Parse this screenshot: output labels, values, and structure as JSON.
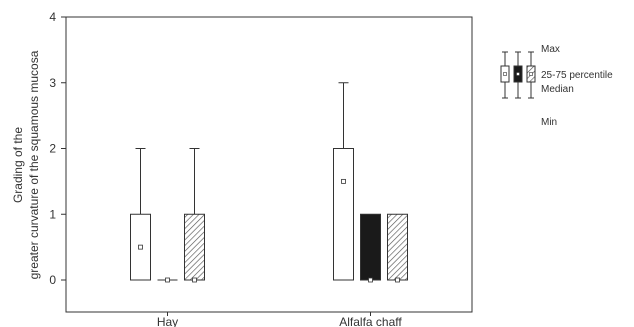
{
  "chart_data": {
    "type": "boxplot",
    "title": "",
    "xlabel": "",
    "ylabel": "Grading of the greater curvature of the squamous mucosa",
    "ylabel_lines": [
      "Grading of the",
      "greater curvature  of the squamous mucosa"
    ],
    "ylim": [
      0,
      4
    ],
    "yticks": [
      "0",
      "1",
      "2",
      "3",
      "4"
    ],
    "categories": [
      "Hay",
      "Alfalfa chaff"
    ],
    "box_styles": [
      "open",
      "filled",
      "hatched"
    ],
    "boxes": [
      {
        "category": "Hay",
        "style": "open",
        "min": 0,
        "q1": 0,
        "median": 0.5,
        "q3": 1,
        "max": 2
      },
      {
        "category": "Hay",
        "style": "filled",
        "min": 0,
        "q1": 0,
        "median": 0,
        "q3": 0,
        "max": 0
      },
      {
        "category": "Hay",
        "style": "hatched",
        "min": 0,
        "q1": 0,
        "median": 0,
        "q3": 1,
        "max": 2
      },
      {
        "category": "Alfalfa chaff",
        "style": "open",
        "min": 0,
        "q1": 0,
        "median": 1.5,
        "q3": 2,
        "max": 3
      },
      {
        "category": "Alfalfa chaff",
        "style": "filled",
        "min": 0,
        "q1": 0,
        "median": 0,
        "q3": 1,
        "max": 1
      },
      {
        "category": "Alfalfa chaff",
        "style": "hatched",
        "min": 0,
        "q1": 0,
        "median": 0,
        "q3": 1,
        "max": 1
      }
    ],
    "legend": {
      "max": "Max",
      "percentile": "25-75 percentile",
      "median": "Median",
      "min": "Min"
    },
    "legend_position": "right",
    "grid": false
  },
  "colors": {
    "line": "#333333",
    "filled_box": "#1a1a1a",
    "hatch": "#555555",
    "background": "#ffffff"
  }
}
